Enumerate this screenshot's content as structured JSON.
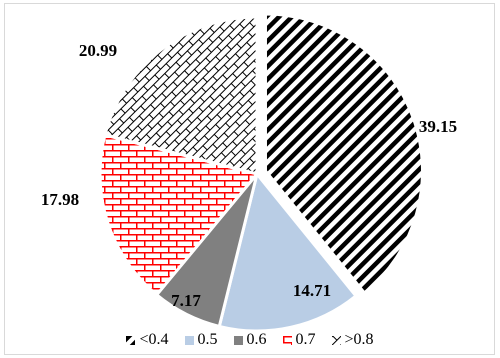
{
  "chart_data": {
    "type": "pie",
    "categories": [
      "<0.4",
      "0.5",
      "0.6",
      "0.7",
      ">0.8"
    ],
    "values": [
      39.15,
      14.71,
      7.17,
      17.98,
      20.99
    ],
    "data_labels": [
      "39.15",
      "14.71",
      "7.17",
      "17.98",
      "20.99"
    ],
    "exploded": [
      true,
      false,
      false,
      false,
      false
    ],
    "legend_position": "bottom",
    "fills": [
      {
        "pattern": "diagonal-stripes",
        "color": "#000000",
        "background": "#ffffff"
      },
      {
        "pattern": "solid",
        "color": "#b9cde5"
      },
      {
        "pattern": "solid",
        "color": "#808080"
      },
      {
        "pattern": "brick",
        "color": "#ff0000",
        "background": "#ffffff"
      },
      {
        "pattern": "diagonal-brick",
        "color": "#000000",
        "background": "#ffffff"
      }
    ]
  }
}
